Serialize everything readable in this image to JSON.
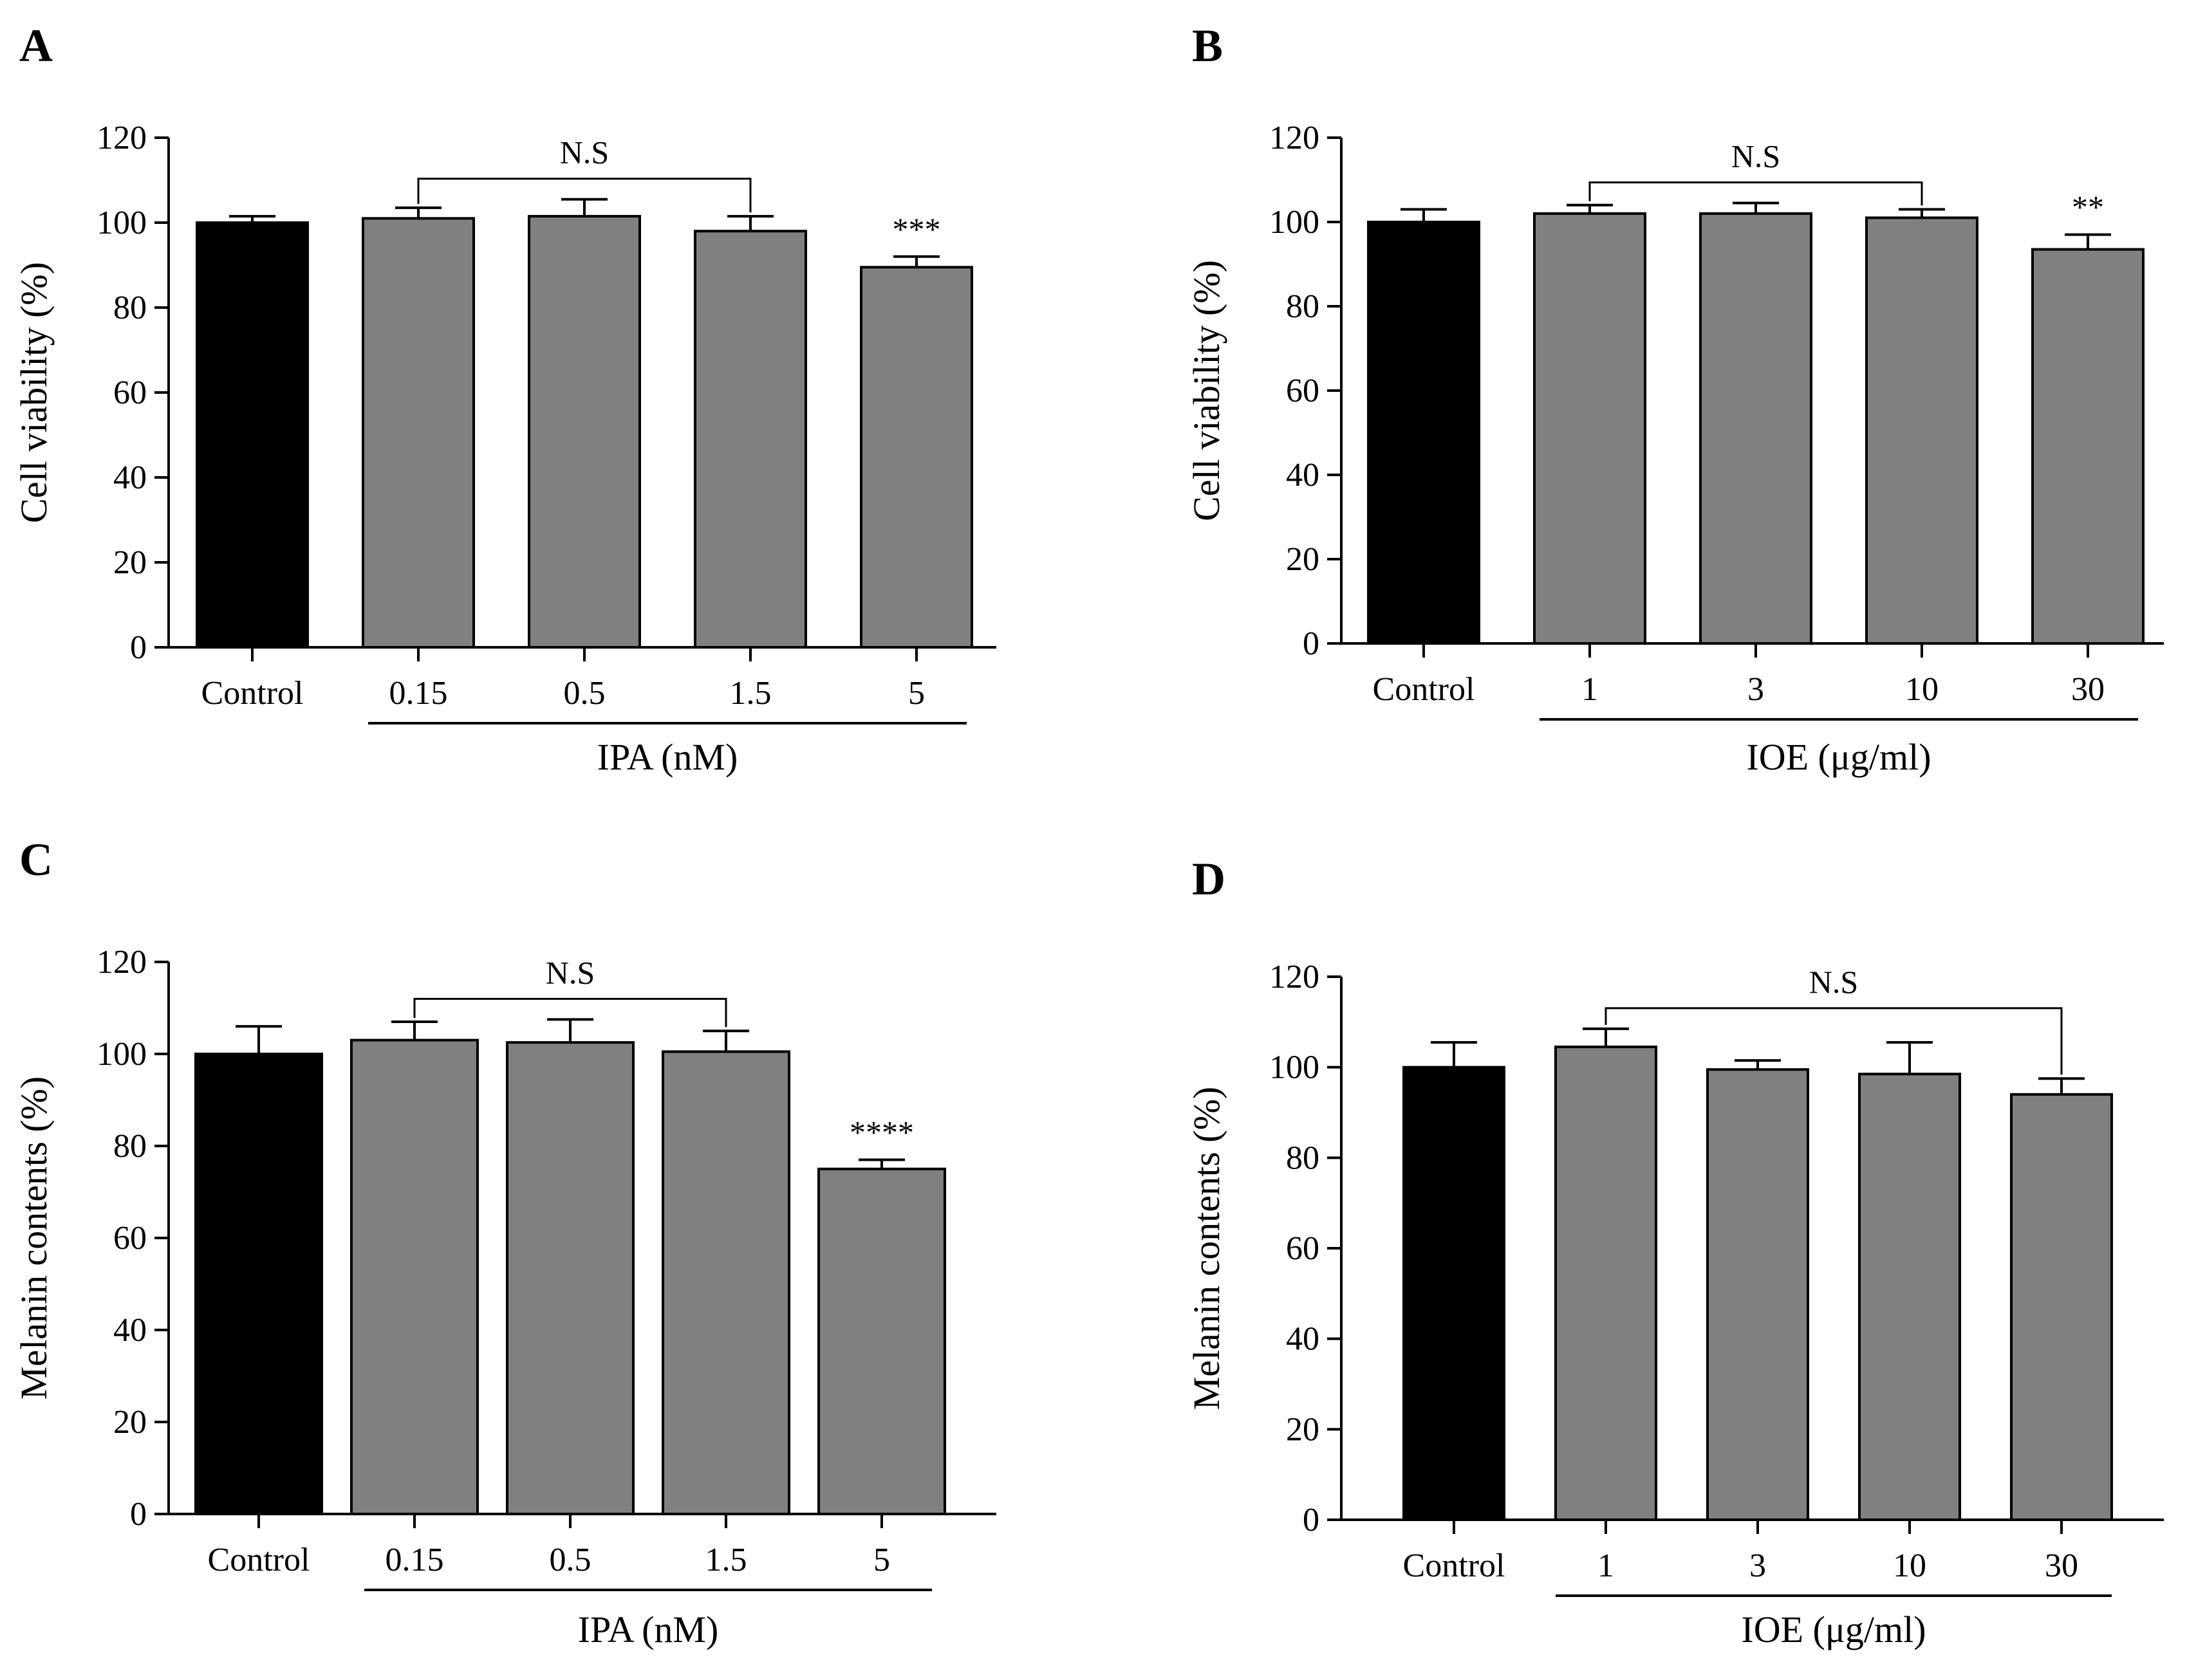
{
  "figure": {
    "colors": {
      "control_bar": "#000000",
      "treatment_bar": "#808080",
      "axis": "#000000"
    }
  },
  "chart_data": [
    {
      "type": "bar",
      "panel": "A",
      "title": "",
      "ylabel": "Cell viability (%)",
      "xlabel": "IPA (nM)",
      "ylim": [
        0,
        120
      ],
      "yticks": [
        0,
        20,
        40,
        60,
        80,
        100,
        120
      ],
      "categories": [
        "Control",
        "0.15",
        "0.5",
        "1.5",
        "5"
      ],
      "values": [
        100,
        101,
        101.5,
        98,
        89.5
      ],
      "errors": [
        1.5,
        2.5,
        4,
        3.5,
        2.5
      ],
      "bar_colors": [
        "#000000",
        "#808080",
        "#808080",
        "#808080",
        "#808080"
      ],
      "significance": [
        "",
        "",
        "",
        "",
        "***"
      ],
      "ns_bracket": {
        "label": "N.S",
        "from": 1,
        "to": 3
      },
      "group_line": {
        "from": 1,
        "to": 4
      }
    },
    {
      "type": "bar",
      "panel": "B",
      "title": "",
      "ylabel": "Cell viability (%)",
      "xlabel": "IOE (μg/ml)",
      "ylim": [
        0,
        120
      ],
      "yticks": [
        0,
        20,
        40,
        60,
        80,
        100,
        120
      ],
      "categories": [
        "Control",
        "1",
        "3",
        "10",
        "30"
      ],
      "values": [
        100,
        102,
        102,
        101,
        93.5
      ],
      "errors": [
        3,
        2,
        2.5,
        2,
        3.5
      ],
      "bar_colors": [
        "#000000",
        "#808080",
        "#808080",
        "#808080",
        "#808080"
      ],
      "significance": [
        "",
        "",
        "",
        "",
        "**"
      ],
      "ns_bracket": {
        "label": "N.S",
        "from": 1,
        "to": 3
      },
      "group_line": {
        "from": 1,
        "to": 4
      }
    },
    {
      "type": "bar",
      "panel": "C",
      "title": "",
      "ylabel": "Melanin contents (%)",
      "xlabel": "IPA (nM)",
      "ylim": [
        0,
        120
      ],
      "yticks": [
        0,
        20,
        40,
        60,
        80,
        100,
        120
      ],
      "categories": [
        "Control",
        "0.15",
        "0.5",
        "1.5",
        "5"
      ],
      "values": [
        100,
        103,
        102.5,
        100.5,
        75
      ],
      "errors": [
        6,
        4,
        5,
        4.5,
        2
      ],
      "bar_colors": [
        "#000000",
        "#808080",
        "#808080",
        "#808080",
        "#808080"
      ],
      "significance": [
        "",
        "",
        "",
        "",
        "****"
      ],
      "ns_bracket": {
        "label": "N.S",
        "from": 1,
        "to": 3
      },
      "group_line": {
        "from": 1,
        "to": 4
      }
    },
    {
      "type": "bar",
      "panel": "D",
      "title": "",
      "ylabel": "Melanin contents (%)",
      "xlabel": "IOE (μg/ml)",
      "ylim": [
        0,
        120
      ],
      "yticks": [
        0,
        20,
        40,
        60,
        80,
        100,
        120
      ],
      "categories": [
        "Control",
        "1",
        "3",
        "10",
        "30"
      ],
      "values": [
        100,
        104.5,
        99.5,
        98.5,
        94
      ],
      "errors": [
        5.5,
        4,
        2,
        7,
        3.5
      ],
      "bar_colors": [
        "#000000",
        "#808080",
        "#808080",
        "#808080",
        "#808080"
      ],
      "significance": [
        "",
        "",
        "",
        "",
        ""
      ],
      "ns_bracket": {
        "label": "N.S",
        "from": 1,
        "to": 4
      },
      "group_line": {
        "from": 1,
        "to": 4
      }
    }
  ]
}
